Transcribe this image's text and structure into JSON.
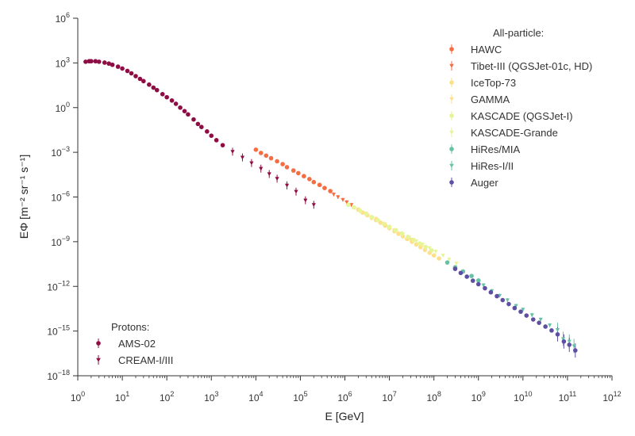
{
  "chart_data": {
    "type": "scatter",
    "title": "",
    "xlabel": "E [GeV]",
    "ylabel": "EΦ [m⁻² sr⁻¹ s⁻¹]",
    "x_scale": "log",
    "y_scale": "log",
    "xlim": [
      1,
      1000000000000.0
    ],
    "ylim": [
      1e-18,
      1000000.0
    ],
    "x_tick_exponents": [
      0,
      1,
      2,
      3,
      4,
      5,
      6,
      7,
      8,
      9,
      10,
      11,
      12
    ],
    "y_tick_exponents": [
      -18,
      -15,
      -12,
      -9,
      -6,
      -3,
      0,
      3,
      6
    ],
    "grid": false,
    "legends": [
      {
        "title": "All-particle:",
        "placement": "top-right",
        "entries": [
          "HAWC",
          "Tibet-III (QGSJet-01c, HD)",
          "IceTop-73",
          "GAMMA",
          "KASCADE (QGSJet-I)",
          "KASCADE-Grande",
          "HiRes/MIA",
          "HiRes-I/II",
          "Auger"
        ]
      },
      {
        "title": "Protons:",
        "placement": "bottom-left",
        "entries": [
          "AMS-02",
          "CREAM-I/III"
        ]
      }
    ],
    "series": [
      {
        "name": "AMS-02",
        "group": "protons",
        "marker": "circle",
        "color": "#8e0d44",
        "x": [
          1.5,
          1.8,
          2,
          2.5,
          3,
          4,
          5,
          6,
          8,
          10,
          13,
          16,
          20,
          25,
          30,
          40,
          50,
          60,
          80,
          100,
          130,
          160,
          200,
          250,
          300,
          400,
          500,
          600,
          800,
          1000,
          1300,
          1800
        ],
        "y": [
          1200.0,
          1300.0,
          1300.0,
          1300.0,
          1200.0,
          1050.0,
          900,
          750,
          560,
          420,
          290,
          200,
          130,
          85,
          60,
          35,
          22,
          15,
          8,
          5,
          3,
          1.8,
          1.0,
          0.58,
          0.35,
          0.16,
          0.08,
          0.05,
          0.025,
          0.013,
          0.0065,
          0.003
        ]
      },
      {
        "name": "CREAM-I/III",
        "group": "protons",
        "marker": "triangle",
        "color": "#8e0d44",
        "x": [
          3000,
          5000,
          8000,
          13000,
          20000,
          30000,
          50000,
          80000,
          130000,
          200000
        ],
        "y": [
          0.0011,
          0.00045,
          0.00019,
          8e-05,
          3.5e-05,
          1.7e-05,
          6e-06,
          2.3e-06,
          6e-07,
          3e-07
        ]
      },
      {
        "name": "HAWC",
        "group": "all",
        "marker": "circle",
        "color": "#f46d43",
        "x": [
          10000,
          13000,
          17000,
          22000,
          30000,
          40000,
          50000,
          70000,
          90000,
          120000,
          160000,
          200000,
          270000,
          350000,
          470000
        ],
        "y": [
          0.0015,
          0.0009,
          0.0006,
          0.0004,
          0.00025,
          0.00016,
          0.0001,
          6e-05,
          4e-05,
          2.5e-05,
          1.6e-05,
          1e-05,
          6.5e-06,
          4e-06,
          2.5e-06
        ]
      },
      {
        "name": "Tibet-III (QGSJet-01c, HD)",
        "group": "all",
        "marker": "triangle",
        "color": "#f46d43",
        "x": [
          560000,
          700000,
          900000,
          1100000,
          1400000
        ],
        "y": [
          1.5e-06,
          1e-06,
          6.5e-07,
          4.5e-07,
          3e-07
        ]
      },
      {
        "name": "IceTop-73",
        "group": "all",
        "marker": "circle",
        "color": "#fee08b",
        "x": [
          1600000.0,
          2000000.0,
          2500000.0,
          3200000.0,
          4000000.0,
          5000000.0,
          6300000.0,
          8000000.0,
          10000000.0,
          13000000.0,
          16000000.0,
          20000000.0,
          25000000.0,
          32000000.0,
          40000000.0,
          50000000.0,
          63000000.0,
          80000000.0,
          100000000.0,
          130000000.0
        ],
        "y": [
          2e-07,
          1.4e-07,
          9e-08,
          6e-08,
          4e-08,
          2.8e-08,
          1.9e-08,
          1.2e-08,
          8e-09,
          5e-09,
          3.4e-09,
          2.3e-09,
          1.5e-09,
          1e-09,
          6.5e-10,
          4.3e-10,
          2.8e-10,
          1.8e-10,
          1.2e-10,
          7.5e-11
        ]
      },
      {
        "name": "GAMMA",
        "group": "all",
        "marker": "triangle",
        "color": "#fee08b",
        "x": [
          2000000.0,
          3000000.0,
          5000000.0,
          8000000.0,
          13000000.0,
          20000000.0,
          30000000.0,
          50000000.0
        ],
        "y": [
          1.5e-07,
          8e-08,
          3.5e-08,
          1.5e-08,
          6e-09,
          3e-09,
          1.4e-09,
          6e-10
        ]
      },
      {
        "name": "KASCADE (QGSJet-I)",
        "group": "all",
        "marker": "circle",
        "color": "#e6f598",
        "x": [
          1200000.0,
          1600000.0,
          2200000.0,
          3000000.0,
          4000000.0,
          5500000.0,
          7500000.0,
          10000000.0,
          14000000.0,
          19000000.0,
          26000000.0,
          35000000.0,
          48000000.0,
          65000000.0,
          89000000.0
        ],
        "y": [
          3e-07,
          2e-07,
          1.2e-07,
          7.5e-08,
          4.5e-08,
          2.8e-08,
          1.6e-08,
          1e-08,
          6e-09,
          3.6e-09,
          2.1e-09,
          1.3e-09,
          7.6e-10,
          4.5e-10,
          2.6e-10
        ]
      },
      {
        "name": "KASCADE-Grande",
        "group": "all",
        "marker": "triangle",
        "color": "#e6f598",
        "x": [
          10000000.0,
          14000000.0,
          20000000.0,
          28000000.0,
          40000000.0,
          56000000.0,
          80000000.0,
          110000000.0,
          160000000.0,
          220000000.0,
          320000000.0
        ],
        "y": [
          9e-09,
          5.5e-09,
          3.2e-09,
          1.9e-09,
          1.1e-09,
          6.5e-10,
          3.8e-10,
          2.2e-10,
          1.2e-10,
          6.5e-11,
          3.5e-11
        ]
      },
      {
        "name": "HiRes/MIA",
        "group": "all",
        "marker": "circle",
        "color": "#66c2a5",
        "x": [
          200000000.0,
          300000000.0,
          450000000.0,
          700000000.0,
          1000000000.0
        ],
        "y": [
          4e-11,
          1.9e-11,
          1e-11,
          5e-12,
          2.5e-12
        ]
      },
      {
        "name": "HiRes-I/II",
        "group": "all",
        "marker": "triangle",
        "color": "#66c2a5",
        "x": [
          1300000000.0,
          2000000000.0,
          3000000000.0,
          4500000000.0,
          7000000000.0,
          10000000000.0,
          16000000000.0,
          25000000000.0,
          40000000000.0,
          60000000000.0,
          80000000000.0,
          110000000000.0,
          140000000000.0
        ],
        "y": [
          1.2e-12,
          5e-13,
          2.4e-13,
          1.2e-13,
          5e-14,
          2.8e-14,
          1.2e-14,
          6e-15,
          2.5e-15,
          1.2e-15,
          3e-16,
          2e-16,
          1e-16
        ]
      },
      {
        "name": "Auger",
        "group": "all",
        "marker": "circle",
        "color": "#5e4fa2",
        "x": [
          300000000.0,
          400000000.0,
          550000000.0,
          750000000.0,
          1000000000.0,
          1400000000.0,
          1900000000.0,
          2600000000.0,
          3500000000.0,
          4800000000.0,
          6500000000.0,
          8900000000.0,
          12000000000.0,
          17000000000.0,
          23000000000.0,
          32000000000.0,
          44000000000.0,
          60000000000.0,
          83000000000.0,
          110000000000.0,
          150000000000.0
        ],
        "y": [
          1.5e-11,
          8e-12,
          4.5e-12,
          2.4e-12,
          1.4e-12,
          7.5e-13,
          4e-13,
          2.2e-13,
          1.2e-13,
          6.5e-14,
          3.5e-14,
          2e-14,
          1.1e-14,
          6e-15,
          3.6e-15,
          2e-15,
          1.1e-15,
          6e-16,
          2e-16,
          1.2e-16,
          5e-17
        ]
      }
    ]
  }
}
